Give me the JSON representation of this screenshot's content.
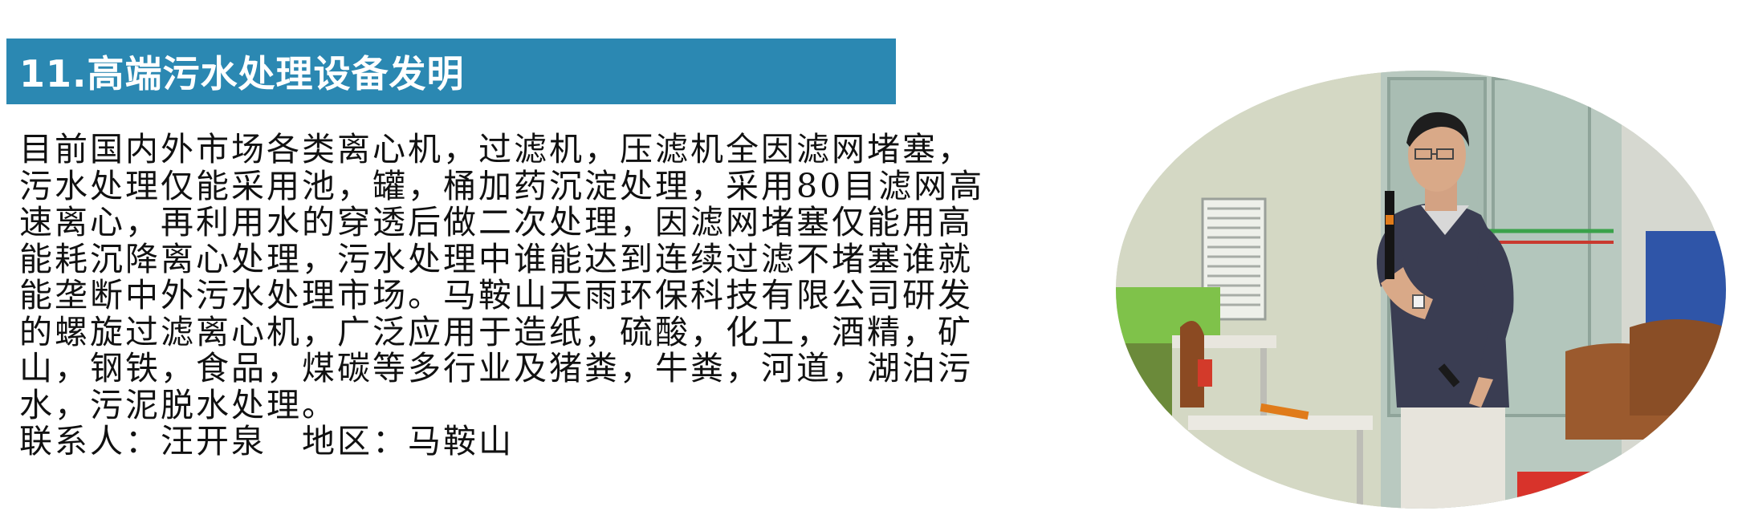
{
  "section": {
    "title": "11.高端污水处理设备发明"
  },
  "description": {
    "lines": [
      "目前国内外市场各类离心机，过滤机，压滤机全因滤网堵塞，",
      "污水处理仅能采用池，罐，桶加药沉淀处理，采用80目滤网高",
      "速离心，再利用水的穿透后做二次处理，因滤网堵塞仅能用高",
      "能耗沉降离心处理，污水处理中谁能达到连续过滤不堵塞谁就",
      "能垄断中外污水处理市场。马鞍山天雨环保科技有限公司研发",
      "的螺旋过滤离心机，广泛应用于造纸，硫酸，化工，酒精，矿",
      "山，钢铁，食品，煤碳等多行业及猪粪，牛粪，河道，湖泊污",
      "水，污泥脱水处理。"
    ]
  },
  "contact": {
    "text": "联系人：汪开泉　地区：马鞍山"
  },
  "colors": {
    "title_bar": "#2b88b2",
    "title_text": "#ffffff",
    "body_text": "#111111"
  },
  "photo": {
    "icon": "presenter-photo"
  }
}
